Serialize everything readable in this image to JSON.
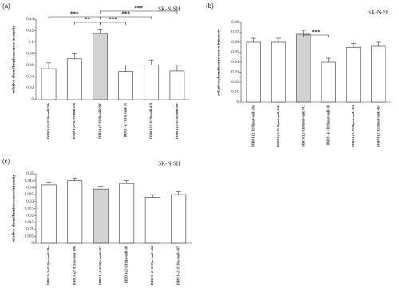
{
  "chart_data": [
    {
      "type": "bar",
      "panel_label": "(a)",
      "title": "SK-N-SH",
      "ylabel": "relative chemiluminescence intensity",
      "categories": [
        "DIRO1-(2~1119)+miR-19a",
        "DIRO1-(2~1119)+miR-19b",
        "DIRO1-(2~1119)+miR-NC",
        "DIRO1-(2~1119)+miR-16",
        "DIRO1-(2~1119)+miR-424",
        "DIRO1-(2~1119)+miR-497"
      ],
      "values": [
        0.054,
        0.071,
        0.115,
        0.049,
        0.06,
        0.05
      ],
      "errors": [
        0.01,
        0.009,
        0.008,
        0.011,
        0.009,
        0.01
      ],
      "colors": [
        "#ffffff",
        "#ffffff",
        "#d3d3d3",
        "#ffffff",
        "#ffffff",
        "#ffffff"
      ],
      "ylim": [
        0,
        0.14
      ],
      "yticks": [
        0,
        0.02,
        0.04,
        0.06,
        0.08,
        0.1,
        0.12,
        0.14
      ],
      "brackets": [
        {
          "label": "***",
          "between": [
            0,
            2
          ]
        },
        {
          "label": "**",
          "between": [
            1,
            2
          ]
        },
        {
          "label": "***",
          "between": [
            2,
            3
          ]
        },
        {
          "label": "***",
          "between": [
            2,
            4
          ]
        },
        {
          "label": "***",
          "between": [
            2,
            5
          ]
        }
      ]
    },
    {
      "type": "bar",
      "panel_label": "(b)",
      "title": "SK-N-SH",
      "ylabel": "relative chemiluminecence intensity",
      "categories": [
        "DIRO1-(2~1119)mut+miR-19a",
        "DIRO1-(2~1119)mut+miR-19b",
        "DIRO1-(2~1119)mut+miR-NC",
        "DIRO1-(2~1119)mut+miR-16",
        "DIRO1-(2~1119)mut+miR-424",
        "DIRO1-(2~1119)mut+miR-497"
      ],
      "values": [
        0.06,
        0.06,
        0.068,
        0.04,
        0.055,
        0.056
      ],
      "errors": [
        0.004,
        0.004,
        0.004,
        0.004,
        0.004,
        0.004
      ],
      "colors": [
        "#ffffff",
        "#ffffff",
        "#d3d3d3",
        "#ffffff",
        "#ffffff",
        "#ffffff"
      ],
      "ylim": [
        0,
        0.08
      ],
      "yticks": [
        0,
        0.01,
        0.02,
        0.03,
        0.04,
        0.05,
        0.06,
        0.07,
        0.08
      ],
      "brackets": [
        {
          "label": "***",
          "between": [
            2,
            3
          ]
        }
      ]
    },
    {
      "type": "bar",
      "panel_label": "(c)",
      "title": "SK-N-SH",
      "ylabel": "relative chemiluminescence intensity",
      "categories": [
        "DIRO1-(2~1119)la+miR-19a",
        "DIRO1-(2~1119)la+miR-19b",
        "DIRO1-(2~1119)la+miR-NC",
        "DIRO1-(2~1119)la+miR-16",
        "DIRO1-(2~1119)la+miR-424",
        "DIRO1-(2~1119)la+miR-497"
      ],
      "values": [
        0.042,
        0.045,
        0.039,
        0.043,
        0.033,
        0.035
      ],
      "errors": [
        0.002,
        0.002,
        0.002,
        0.002,
        0.002,
        0.002
      ],
      "colors": [
        "#ffffff",
        "#ffffff",
        "#d3d3d3",
        "#ffffff",
        "#ffffff",
        "#ffffff"
      ],
      "ylim": [
        0,
        0.05
      ],
      "yticks": [
        0,
        0.005,
        0.01,
        0.015,
        0.02,
        0.025,
        0.03,
        0.035,
        0.04,
        0.045,
        0.05
      ],
      "brackets": []
    }
  ]
}
